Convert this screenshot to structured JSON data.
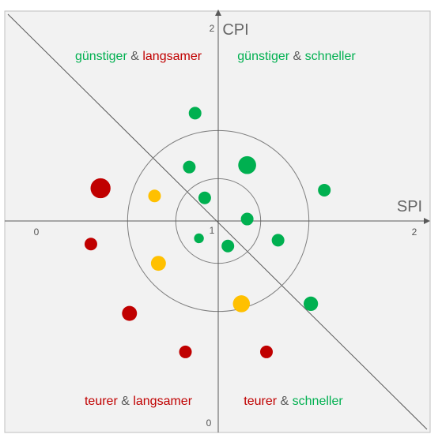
{
  "chart_data": {
    "type": "scatter",
    "title": "",
    "xlabel": "SPI",
    "ylabel": "CPI",
    "xlim": [
      0,
      2
    ],
    "ylim": [
      0,
      2
    ],
    "x_tick_labels": {
      "min": "0",
      "center": "1",
      "max": "2"
    },
    "y_tick_labels": {
      "min": "0",
      "max": "2"
    },
    "grid": false,
    "background_color": "#f2f2f2",
    "colors": {
      "green": "#00b050",
      "yellow": "#ffc000",
      "red": "#c00000",
      "text_gray": "#595959"
    },
    "circles_radius": [
      0.22,
      0.47
    ],
    "diagonal": true,
    "quadrants": [
      {
        "pos": "top-left",
        "parts": [
          {
            "text": "günstiger",
            "color": "green"
          },
          {
            "text": " & ",
            "color": "text_gray"
          },
          {
            "text": "langsamer",
            "color": "red"
          }
        ]
      },
      {
        "pos": "top-right",
        "parts": [
          {
            "text": "günstiger",
            "color": "green"
          },
          {
            "text": " & ",
            "color": "text_gray"
          },
          {
            "text": "schneller",
            "color": "green"
          }
        ]
      },
      {
        "pos": "bottom-left",
        "parts": [
          {
            "text": "teurer",
            "color": "red"
          },
          {
            "text": " & ",
            "color": "text_gray"
          },
          {
            "text": "langsamer",
            "color": "red"
          }
        ]
      },
      {
        "pos": "bottom-right",
        "parts": [
          {
            "text": "teurer",
            "color": "red"
          },
          {
            "text": " & ",
            "color": "text_gray"
          },
          {
            "text": "schneller",
            "color": "green"
          }
        ]
      }
    ],
    "points": [
      {
        "x": 0.88,
        "y": 1.56,
        "size": 1,
        "color": "green"
      },
      {
        "x": 0.85,
        "y": 1.28,
        "size": 1,
        "color": "green"
      },
      {
        "x": 1.15,
        "y": 1.29,
        "size": 2,
        "color": "green"
      },
      {
        "x": 0.93,
        "y": 1.12,
        "size": 1,
        "color": "green"
      },
      {
        "x": 1.55,
        "y": 1.16,
        "size": 1,
        "color": "green"
      },
      {
        "x": 1.15,
        "y": 1.01,
        "size": 1,
        "color": "green"
      },
      {
        "x": 0.9,
        "y": 0.91,
        "size": 0.6,
        "color": "green"
      },
      {
        "x": 1.05,
        "y": 0.87,
        "size": 1,
        "color": "green"
      },
      {
        "x": 1.31,
        "y": 0.9,
        "size": 1,
        "color": "green"
      },
      {
        "x": 1.48,
        "y": 0.57,
        "size": 1.3,
        "color": "green"
      },
      {
        "x": 0.39,
        "y": 1.17,
        "size": 2.5,
        "color": "red"
      },
      {
        "x": 0.67,
        "y": 1.13,
        "size": 1,
        "color": "yellow"
      },
      {
        "x": 0.69,
        "y": 0.78,
        "size": 1.4,
        "color": "yellow"
      },
      {
        "x": 1.12,
        "y": 0.57,
        "size": 1.8,
        "color": "yellow"
      },
      {
        "x": 0.34,
        "y": 0.88,
        "size": 1,
        "color": "red"
      },
      {
        "x": 0.54,
        "y": 0.52,
        "size": 1.4,
        "color": "red"
      },
      {
        "x": 0.83,
        "y": 0.32,
        "size": 1,
        "color": "red"
      },
      {
        "x": 1.25,
        "y": 0.32,
        "size": 1,
        "color": "red"
      }
    ]
  }
}
